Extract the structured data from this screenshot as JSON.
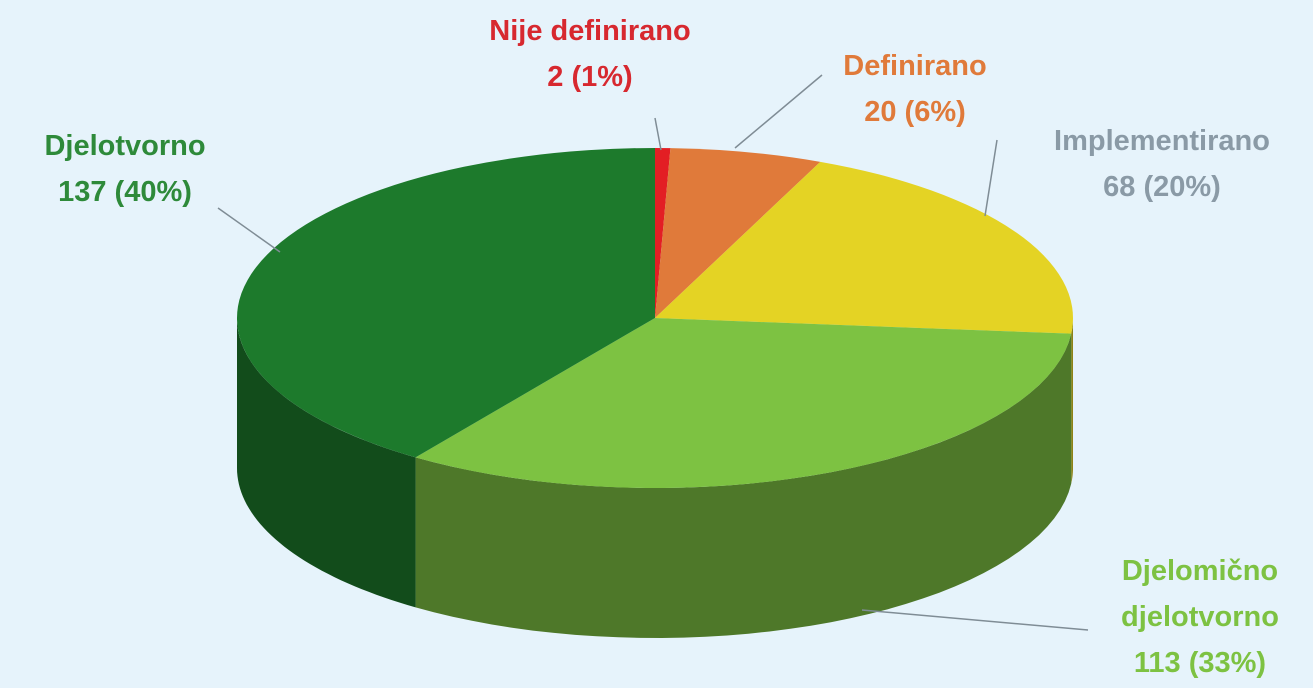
{
  "chart_data": {
    "type": "pie",
    "categories": [
      "Nije definirano",
      "Definirano",
      "Implementirano",
      "Djelomično djelotvorno",
      "Djelotvorno"
    ],
    "values": [
      2,
      20,
      68,
      113,
      137
    ],
    "value_labels": [
      "2 (1%)",
      "20 (6%)",
      "68 (20%)",
      "113 (33%)",
      "137 (40%)"
    ],
    "colors": [
      "#e31e24",
      "#e07a3a",
      "#e4d324",
      "#7dc242",
      "#1d7a2c"
    ],
    "label_colors": [
      "#d7282f",
      "#e07a3a",
      "#8a9aa6",
      "#7dc242",
      "#2e8a3a"
    ]
  }
}
